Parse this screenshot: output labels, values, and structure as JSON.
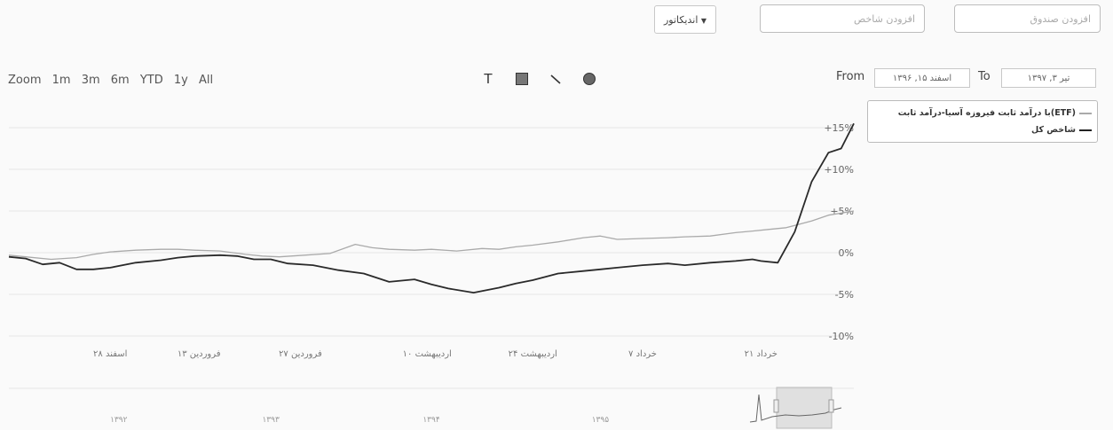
{
  "header": {
    "fund_input_placeholder": "افزودن صندوق",
    "index_input_placeholder": "افزودن شاخص",
    "indicator_label": "اندیکاتور"
  },
  "toolbar": {
    "zoom_label": "Zoom",
    "zoom_options": [
      "1m",
      "3m",
      "6m",
      "YTD",
      "1y",
      "All"
    ],
    "from_label": "From",
    "to_label": "To",
    "from_value": "اسفند ۱۵, ۱۳۹۶",
    "to_value": "تیر ۳, ۱۳۹۷"
  },
  "chart_data": {
    "type": "line",
    "x_ticks": [
      "اسفند ۲۸",
      "فروردین ۱۳",
      "فروردین ۲۷",
      "اردیبهشت ۱۰",
      "اردیبهشت ۲۴",
      "خرداد ۷",
      "خرداد ۲۱"
    ],
    "y_ticks": [
      "+15%",
      "+10%",
      "+5%",
      "0%",
      "-5%",
      "-10%"
    ],
    "ylim": [
      -12,
      18
    ],
    "legend_position": "top-right",
    "navigator_labels": [
      "۱۳۹۲",
      "۱۳۹۳",
      "۱۳۹۴",
      "۱۳۹۵"
    ],
    "series": [
      {
        "name": "(ETF)با درآمد ثابت فیروزه آسیا-درآمد ثابت",
        "color": "#aaaaaa",
        "x": [
          0,
          0.02,
          0.05,
          0.08,
          0.1,
          0.12,
          0.15,
          0.18,
          0.2,
          0.22,
          0.25,
          0.28,
          0.3,
          0.32,
          0.35,
          0.38,
          0.41,
          0.43,
          0.45,
          0.48,
          0.5,
          0.53,
          0.56,
          0.58,
          0.6,
          0.62,
          0.65,
          0.68,
          0.7,
          0.72,
          0.75,
          0.78,
          0.8,
          0.83,
          0.86,
          0.88,
          0.9,
          0.92,
          0.95,
          0.97,
          1.0
        ],
        "values": [
          -0.3,
          -0.5,
          -0.8,
          -0.6,
          -0.2,
          0.1,
          0.3,
          0.4,
          0.4,
          0.3,
          0.2,
          -0.2,
          -0.4,
          -0.5,
          -0.3,
          -0.1,
          1.0,
          0.6,
          0.4,
          0.3,
          0.4,
          0.2,
          0.5,
          0.4,
          0.7,
          0.9,
          1.3,
          1.8,
          2.0,
          1.6,
          1.7,
          1.8,
          1.9,
          2.0,
          2.4,
          2.6,
          2.8,
          3.0,
          3.8,
          4.5,
          5.0
        ]
      },
      {
        "name": "شاخص کل",
        "color": "#2a2a2a",
        "x": [
          0,
          0.02,
          0.04,
          0.06,
          0.08,
          0.1,
          0.12,
          0.15,
          0.18,
          0.2,
          0.22,
          0.25,
          0.27,
          0.29,
          0.31,
          0.33,
          0.36,
          0.39,
          0.42,
          0.45,
          0.48,
          0.5,
          0.52,
          0.55,
          0.58,
          0.6,
          0.62,
          0.65,
          0.68,
          0.7,
          0.72,
          0.75,
          0.78,
          0.8,
          0.83,
          0.86,
          0.88,
          0.89,
          0.91,
          0.93,
          0.95,
          0.97,
          0.985,
          1.0
        ],
        "values": [
          -0.5,
          -0.7,
          -1.4,
          -1.2,
          -2.0,
          -2.0,
          -1.8,
          -1.2,
          -0.9,
          -0.6,
          -0.4,
          -0.3,
          -0.4,
          -0.8,
          -0.8,
          -1.3,
          -1.5,
          -2.1,
          -2.5,
          -3.5,
          -3.2,
          -3.8,
          -4.3,
          -4.8,
          -4.2,
          -3.7,
          -3.3,
          -2.5,
          -2.2,
          -2.0,
          -1.8,
          -1.5,
          -1.3,
          -1.5,
          -1.2,
          -1.0,
          -0.8,
          -1.0,
          -1.2,
          2.5,
          8.5,
          12.0,
          12.5,
          15.5
        ]
      }
    ]
  }
}
